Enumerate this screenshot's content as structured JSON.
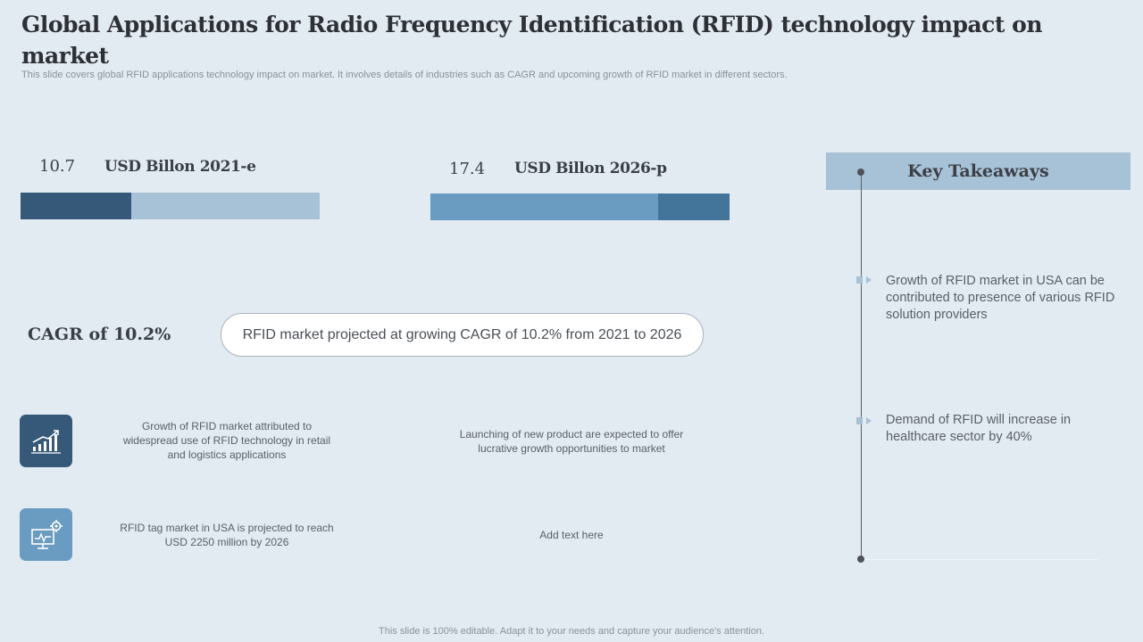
{
  "header": {
    "title": "Global Applications for Radio Frequency Identification (RFID) technology impact on market",
    "subtitle": "This slide covers global RFID applications technology impact on market. It involves details of industries such as CAGR and upcoming growth of RFID market in different sectors."
  },
  "metrics": [
    {
      "value": "10.7",
      "label": "USD Billon 2021-e",
      "fill_fraction": 0.37
    },
    {
      "value": "17.4",
      "label": "USD Billon 2026-p",
      "fill_fraction": 0.76
    }
  ],
  "cagr": {
    "label": "CAGR of 10.2%",
    "pill_text": "RFID market projected at growing CAGR of 10.2% from 2021 to 2026"
  },
  "facts": [
    {
      "icon": "growth-chart-icon",
      "text": "Growth of RFID market  attributed to widespread use of RFID technology in retail and logistics applications"
    },
    {
      "text": "Launching of new product are expected to offer lucrative growth opportunities to market"
    },
    {
      "icon": "monitor-gear-icon",
      "text": "RFID tag market in USA is projected to reach USD 2250 million by 2026"
    },
    {
      "text": "Add text here"
    }
  ],
  "key_takeaways": {
    "title": "Key Takeaways",
    "items": [
      "Growth of RFID market in USA can be contributed to presence of various RFID solution providers",
      "Demand of RFID will increase in healthcare sector by 40%"
    ]
  },
  "footer": "This slide is 100% editable. Adapt it to your needs and capture your audience's attention.",
  "colors": {
    "background": "#e2eaf2",
    "dark_blue": "#36597a",
    "light_blue": "#a7c1d6",
    "mid_blue": "#6a9bc0",
    "steel_blue": "#43749a"
  }
}
